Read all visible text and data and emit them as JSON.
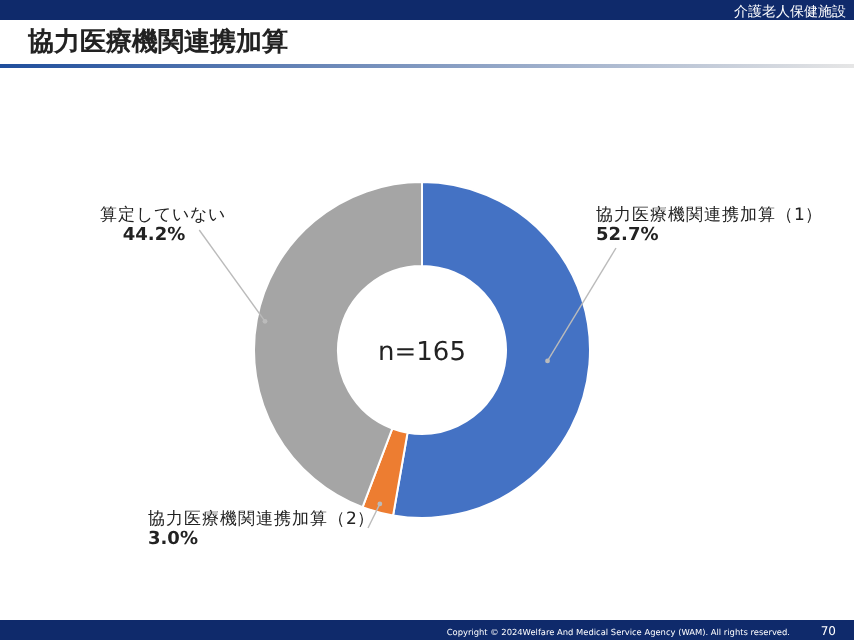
{
  "chart_data": {
    "type": "donut",
    "title": "協力医療機関連携加算",
    "subtitle": "介護老人保健施設",
    "categories": [
      "協力医療機関連携加算（1）",
      "協力医療機関連携加算（2）",
      "算定していない"
    ],
    "values": [
      52.7,
      3.0,
      44.2
    ],
    "colors": [
      "#4472c4",
      "#ed7d31",
      "#a5a5a5"
    ],
    "value_labels": [
      "52.7%",
      "3.0%",
      "44.2%"
    ],
    "annotations": [
      "n=165",
      "Copyright © 2024Welfare And Medical Service Agency (WAM). All rights reserved.",
      "70"
    ]
  }
}
